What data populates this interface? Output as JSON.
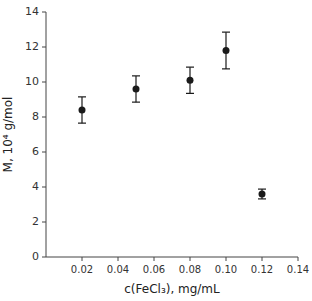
{
  "chart_data": {
    "type": "scatter",
    "x": [
      0.02,
      0.05,
      0.08,
      0.1,
      0.12
    ],
    "values": [
      8.4,
      9.6,
      10.1,
      11.8,
      3.6
    ],
    "yerr": [
      0.75,
      0.75,
      0.75,
      1.05,
      0.28
    ],
    "color": "#1a1a1a",
    "marker": "circle",
    "x_label": "c(FeCl₃), mg/mL",
    "y_label": "M, 10⁴ g/mol",
    "xlim": [
      0,
      0.14
    ],
    "ylim": [
      0,
      14
    ],
    "xticks": [
      0.02,
      0.04,
      0.06,
      0.08,
      {
        "value": 0.1,
        "label": "0.10"
      },
      0.12,
      0.14
    ],
    "yticks": [
      0,
      2,
      4,
      6,
      8,
      10,
      12,
      14
    ],
    "grid": false
  }
}
